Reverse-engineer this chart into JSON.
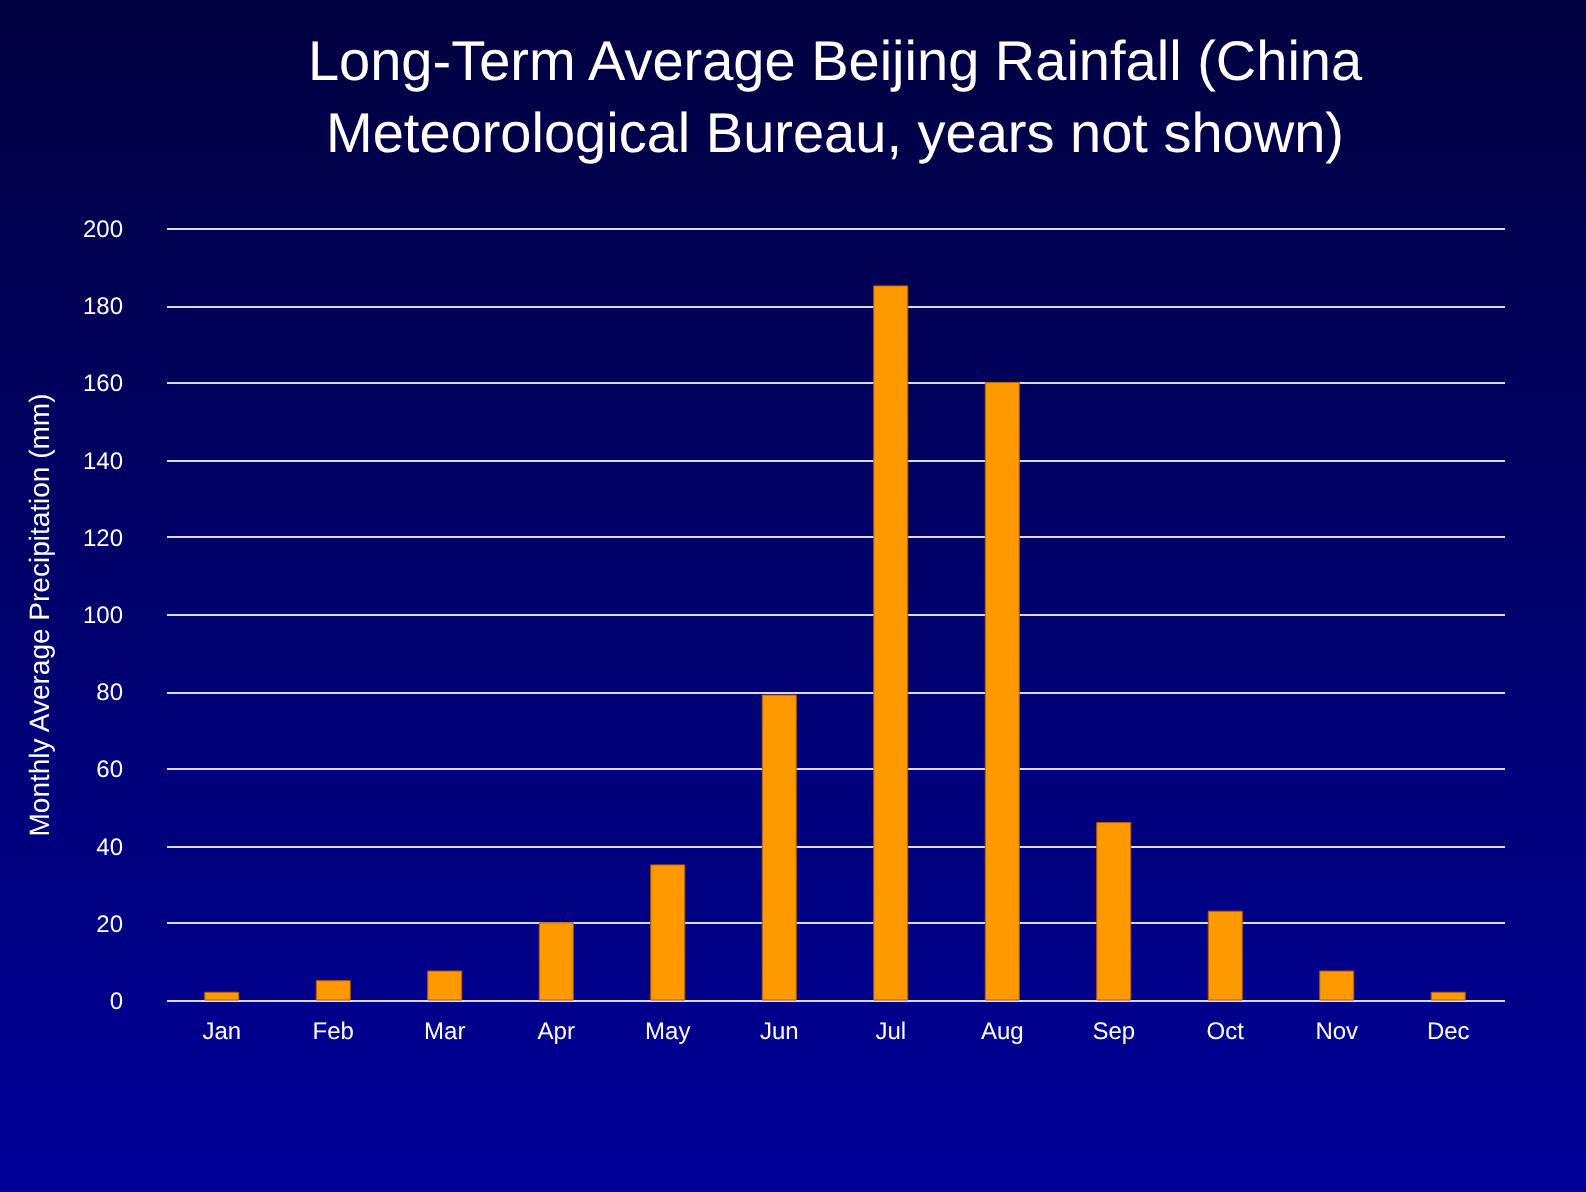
{
  "chart_data": {
    "type": "bar",
    "title": "Long-Term Average Beijing Rainfall (China Meteorological Bureau, years not shown)",
    "ylabel": "Monthly Average Precipitation (mm)",
    "categories": [
      "Jan",
      "Feb",
      "Mar",
      "Apr",
      "May",
      "Jun",
      "Jul",
      "Aug",
      "Sep",
      "Oct",
      "Nov",
      "Dec"
    ],
    "values": [
      2,
      5,
      7.5,
      20,
      35,
      79,
      185,
      160,
      46,
      23,
      7.5,
      2
    ],
    "color": "#ff9900",
    "ylim": [
      0,
      200
    ],
    "yticks": [
      0,
      20,
      40,
      60,
      80,
      100,
      120,
      140,
      160,
      180,
      200
    ],
    "grid": true
  }
}
